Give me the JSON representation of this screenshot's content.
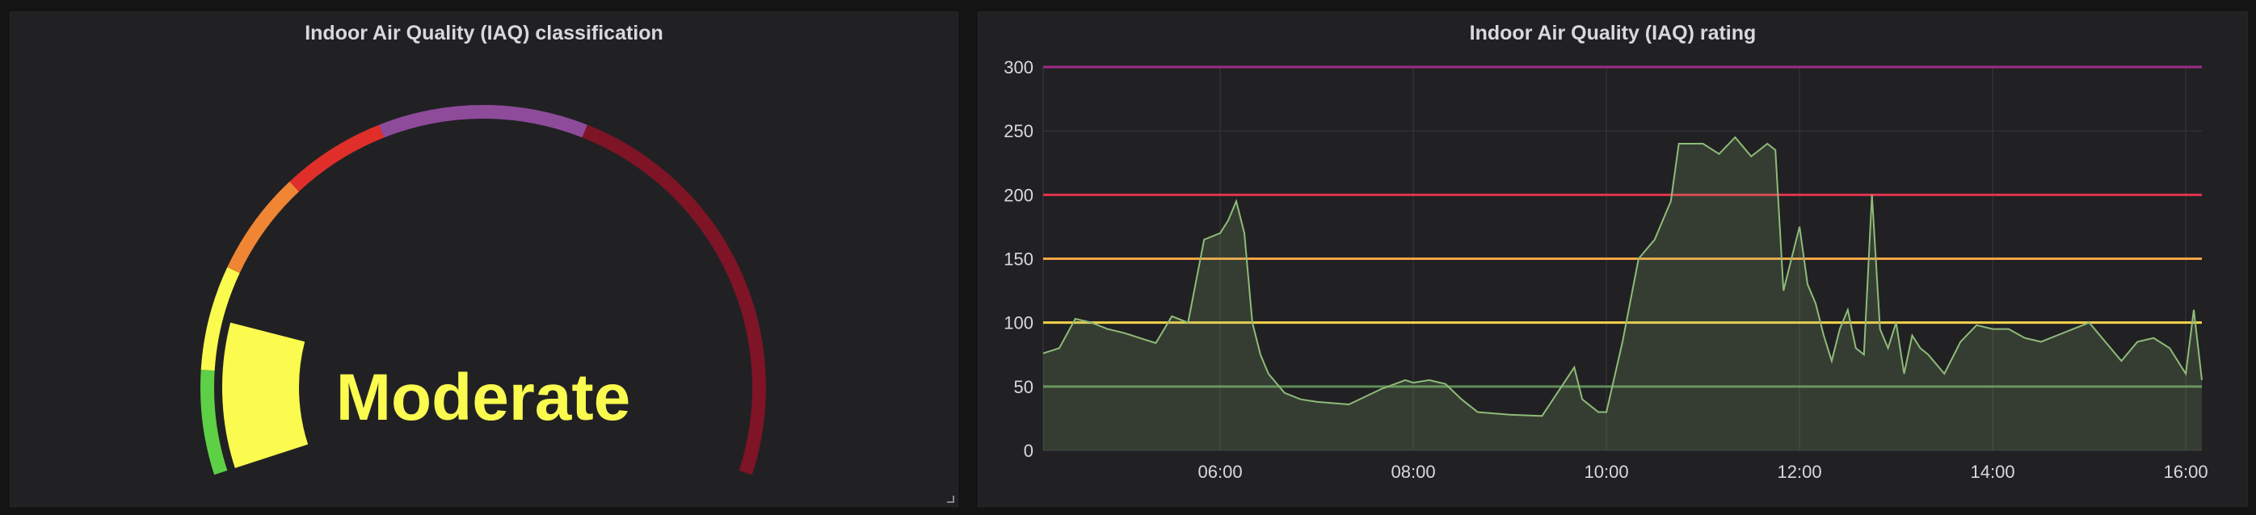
{
  "left_panel": {
    "title": "Indoor Air Quality (IAQ) classification",
    "value_text": "Moderate",
    "value_color": "#fafb4e",
    "gauge": {
      "min": 0,
      "max": 500,
      "value": 75,
      "thresholds": [
        {
          "from": 0,
          "to": 50,
          "color": "#5ed046"
        },
        {
          "from": 50,
          "to": 100,
          "color": "#fafb4e"
        },
        {
          "from": 100,
          "to": 150,
          "color": "#f08533"
        },
        {
          "from": 150,
          "to": 200,
          "color": "#e02f2a"
        },
        {
          "from": 200,
          "to": 300,
          "color": "#8e4b9a"
        },
        {
          "from": 300,
          "to": 500,
          "color": "#7e1425"
        }
      ]
    }
  },
  "right_panel": {
    "title": "Indoor Air Quality (IAQ) rating",
    "chart_data": {
      "type": "line",
      "title": "Indoor Air Quality (IAQ) rating",
      "x_ticks": [
        "06:00",
        "08:00",
        "10:00",
        "12:00",
        "14:00",
        "16:00"
      ],
      "x_range": [
        "04:10",
        "16:10"
      ],
      "ylim": [
        0,
        300
      ],
      "y_ticks": [
        0,
        50,
        100,
        150,
        200,
        250,
        300
      ],
      "grid": true,
      "series_color": "#8fbb78",
      "thresholds": [
        {
          "value": 50,
          "color": "#5e8e57"
        },
        {
          "value": 100,
          "color": "#f5d24a"
        },
        {
          "value": 150,
          "color": "#f5a545"
        },
        {
          "value": 200,
          "color": "#e0344c"
        },
        {
          "value": 300,
          "color": "#9e2b8a"
        }
      ],
      "x": [
        "04:10",
        "04:20",
        "04:30",
        "04:40",
        "04:50",
        "05:00",
        "05:10",
        "05:20",
        "05:30",
        "05:40",
        "05:50",
        "06:00",
        "06:05",
        "06:10",
        "06:15",
        "06:20",
        "06:25",
        "06:30",
        "06:40",
        "06:50",
        "07:00",
        "07:20",
        "07:40",
        "07:55",
        "08:00",
        "08:10",
        "08:20",
        "08:30",
        "08:40",
        "09:00",
        "09:20",
        "09:40",
        "09:45",
        "09:55",
        "10:00",
        "10:10",
        "10:20",
        "10:30",
        "10:40",
        "10:45",
        "11:00",
        "11:10",
        "11:20",
        "11:30",
        "11:40",
        "11:45",
        "11:50",
        "11:55",
        "12:00",
        "12:05",
        "12:10",
        "12:15",
        "12:20",
        "12:25",
        "12:30",
        "12:35",
        "12:40",
        "12:45",
        "12:50",
        "12:55",
        "13:00",
        "13:05",
        "13:10",
        "13:15",
        "13:20",
        "13:30",
        "13:40",
        "13:50",
        "14:00",
        "14:10",
        "14:20",
        "14:30",
        "14:40",
        "14:50",
        "15:00",
        "15:10",
        "15:20",
        "15:30",
        "15:40",
        "15:50",
        "16:00",
        "16:05",
        "16:10"
      ],
      "values": [
        76,
        80,
        103,
        100,
        95,
        92,
        88,
        84,
        105,
        100,
        165,
        170,
        180,
        195,
        170,
        100,
        75,
        60,
        45,
        40,
        38,
        36,
        48,
        55,
        53,
        55,
        52,
        40,
        30,
        28,
        27,
        65,
        40,
        30,
        30,
        85,
        150,
        165,
        195,
        240,
        240,
        232,
        245,
        230,
        240,
        235,
        125,
        150,
        175,
        130,
        115,
        90,
        70,
        95,
        110,
        80,
        75,
        200,
        95,
        80,
        100,
        60,
        90,
        80,
        75,
        60,
        85,
        98,
        95,
        95,
        88,
        85,
        90,
        95,
        100,
        85,
        70,
        85,
        88,
        80,
        60,
        110,
        55
      ]
    }
  }
}
